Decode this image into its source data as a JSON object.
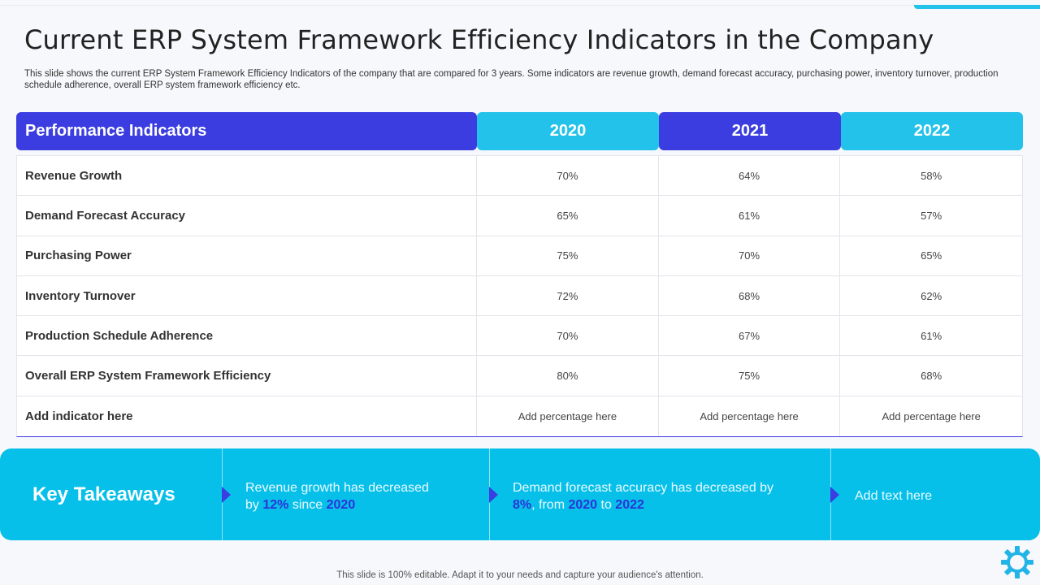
{
  "title": "Current ERP System Framework Efficiency Indicators in the Company",
  "subtitle": "This slide shows the current ERP System Framework Efficiency Indicators of the company that are compared for 3 years. Some indicators are revenue growth, demand forecast accuracy, purchasing power, inventory turnover, production schedule adherence, overall ERP system framework efficiency etc.",
  "table": {
    "headers": [
      "Performance Indicators",
      "2020",
      "2021",
      "2022"
    ],
    "rows": [
      {
        "label": "Revenue Growth",
        "v2020": "70%",
        "v2021": "64%",
        "v2022": "58%"
      },
      {
        "label": "Demand Forecast Accuracy",
        "v2020": "65%",
        "v2021": "61%",
        "v2022": "57%"
      },
      {
        "label": "Purchasing Power",
        "v2020": "75%",
        "v2021": "70%",
        "v2022": "65%"
      },
      {
        "label": "Inventory Turnover",
        "v2020": "72%",
        "v2021": "68%",
        "v2022": "62%"
      },
      {
        "label": "Production Schedule Adherence",
        "v2020": "70%",
        "v2021": "67%",
        "v2022": "61%"
      },
      {
        "label": "Overall ERP System Framework Efficiency",
        "v2020": "80%",
        "v2021": "75%",
        "v2022": "68%"
      },
      {
        "label": "Add indicator here",
        "v2020": "Add percentage  here",
        "v2021": "Add percentage  here",
        "v2022": "Add percentage  here"
      }
    ]
  },
  "takeaways": {
    "title": "Key Takeaways",
    "item1": {
      "line1": "Revenue growth has decreased",
      "by": "by ",
      "pct": "12%",
      "since": " since ",
      "year": "2020"
    },
    "item2": {
      "line1": "Demand forecast accuracy has decreased by",
      "pct": "8%",
      "from": ", from ",
      "year1": "2020",
      "to": " to ",
      "year2": "2022"
    },
    "item3": "Add text here"
  },
  "footer": "This slide is 100% editable. Adapt it to your needs and capture your audience's attention.",
  "colors": {
    "primary": "#3b3de0",
    "accent": "#22c2ea",
    "banner": "#06c0ea"
  }
}
